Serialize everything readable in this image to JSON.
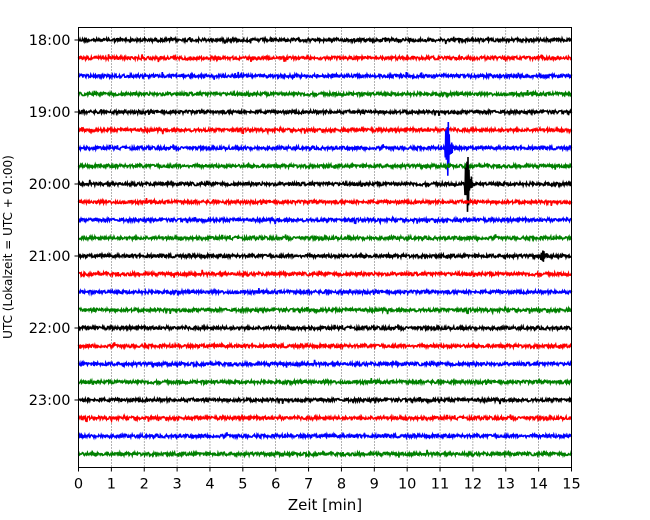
{
  "chart_data": {
    "type": "line",
    "xlabel": "Zeit  [min]",
    "ylabel": "UTC (Lokalzeit = UTC + 01:00)",
    "xlim": [
      0,
      15
    ],
    "x_ticks": [
      "0",
      "1",
      "2",
      "3",
      "4",
      "5",
      "6",
      "7",
      "8",
      "9",
      "10",
      "11",
      "12",
      "13",
      "14",
      "15"
    ],
    "y_ticks": [
      "18:00",
      "19:00",
      "20:00",
      "21:00",
      "22:00",
      "23:00"
    ],
    "grid": {
      "vertical_dotted": true
    },
    "trace_interval_minutes": 15,
    "trace_start": "18:00",
    "trace_count": 24,
    "trace_colors": [
      "#000000",
      "#ff0000",
      "#0000ff",
      "#008000"
    ],
    "events": [
      {
        "trace_start": "19:30",
        "t_min": 11.2,
        "amplitude": "strong"
      },
      {
        "trace_start": "20:00",
        "t_min": 11.8,
        "amplitude": "strong"
      },
      {
        "trace_start": "21:00",
        "t_min": 14.1,
        "amplitude": "medium"
      }
    ]
  }
}
